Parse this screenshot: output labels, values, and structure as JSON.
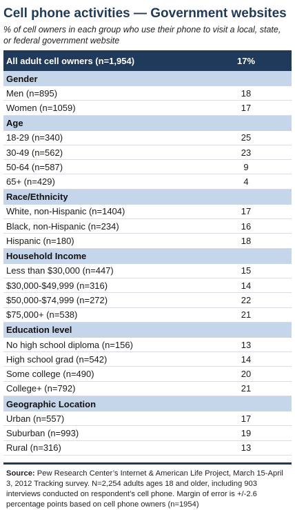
{
  "title": "Cell phone activities — Government websites",
  "subtitle": "% of cell owners in each group who use their phone to visit a local, state, or federal government website",
  "chart_data": {
    "type": "table",
    "overall": {
      "label": "All adult cell owners (n=1,954)",
      "value": "17%"
    },
    "groups": [
      {
        "name": "Gender",
        "rows": [
          {
            "label": "Men (n=895)",
            "value": 18
          },
          {
            "label": "Women (n=1059)",
            "value": 17
          }
        ]
      },
      {
        "name": "Age",
        "rows": [
          {
            "label": "18-29 (n=340)",
            "value": 25
          },
          {
            "label": "30-49 (n=562)",
            "value": 23
          },
          {
            "label": "50-64 (n=587)",
            "value": 9
          },
          {
            "label": "65+ (n=429)",
            "value": 4
          }
        ]
      },
      {
        "name": "Race/Ethnicity",
        "rows": [
          {
            "label": "White, non-Hispanic (n=1404)",
            "value": 17
          },
          {
            "label": "Black, non-Hispanic (n=234)",
            "value": 16
          },
          {
            "label": "Hispanic (n=180)",
            "value": 18
          }
        ]
      },
      {
        "name": "Household Income",
        "rows": [
          {
            "label": "Less than $30,000 (n=447)",
            "value": 15
          },
          {
            "label": "$30,000-$49,999 (n=316)",
            "value": 14
          },
          {
            "label": "$50,000-$74,999 (n=272)",
            "value": 22
          },
          {
            "label": "$75,000+ (n=538)",
            "value": 21
          }
        ]
      },
      {
        "name": "Education level",
        "rows": [
          {
            "label": "No high school diploma (n=156)",
            "value": 13
          },
          {
            "label": "High school grad (n=542)",
            "value": 14
          },
          {
            "label": "Some college (n=490)",
            "value": 20
          },
          {
            "label": "College+ (n=792)",
            "value": 21
          }
        ]
      },
      {
        "name": "Geographic Location",
        "rows": [
          {
            "label": "Urban (n=557)",
            "value": 17
          },
          {
            "label": "Suburban (n=993)",
            "value": 19
          },
          {
            "label": "Rural (n=316)",
            "value": 13
          }
        ]
      }
    ]
  },
  "source": {
    "label": "Source:",
    "text": "Pew Research Center’s Internet & American Life Project, March 15-April 3, 2012 Tracking survey. N=2,254 adults ages 18 and older, including 903 interviews conducted on respondent’s cell phone. Margin of error is +/-2.6 percentage points based on cell phone owners (n=1954)"
  },
  "colors": {
    "header_bg": "#1f3a5a",
    "category_bg": "#c5d5ea",
    "title": "#1f3a5a"
  }
}
